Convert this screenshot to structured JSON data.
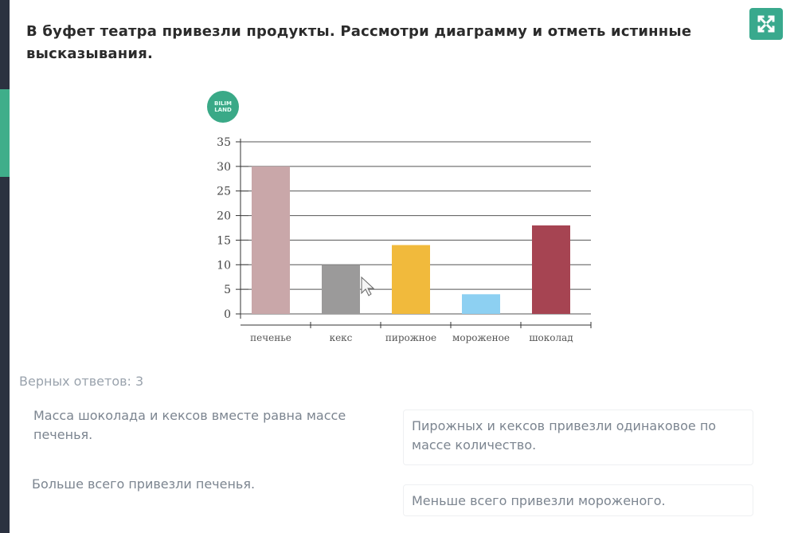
{
  "task": {
    "title": "В буфет театра привезли продукты. Рассмотри диаграмму и отметь истинные высказывания."
  },
  "logo": {
    "line1": "BILIM",
    "line2": "LAND"
  },
  "chart_data": {
    "type": "bar",
    "categories": [
      "печенье",
      "кекс",
      "пирожное",
      "мороженое",
      "шоколад"
    ],
    "values": [
      30,
      10,
      14,
      4,
      18
    ],
    "colors": [
      "#c9a7a9",
      "#9b9a9a",
      "#f1ba3c",
      "#8dd0f2",
      "#a64452"
    ],
    "yticks": [
      0,
      5,
      10,
      15,
      20,
      25,
      30,
      35
    ],
    "ylim": [
      0,
      35
    ],
    "grid": true,
    "title": "",
    "xlabel": "",
    "ylabel": ""
  },
  "correct_count": "Верных ответов: 3",
  "answers": [
    {
      "text": "Масса шоколада и кексов вместе равна массе печенья."
    },
    {
      "text": "Пирожных и кексов привезли одинаковое по массе количество."
    },
    {
      "text": "Больше всего привезли печенья."
    },
    {
      "text": "Меньше всего привезли мороженого."
    }
  ],
  "colors": {
    "accent": "#39a98d",
    "text_muted": "#7c8590"
  },
  "icons": {
    "expand": "expand-arrows-icon",
    "cursor": "mouse-pointer-icon"
  }
}
